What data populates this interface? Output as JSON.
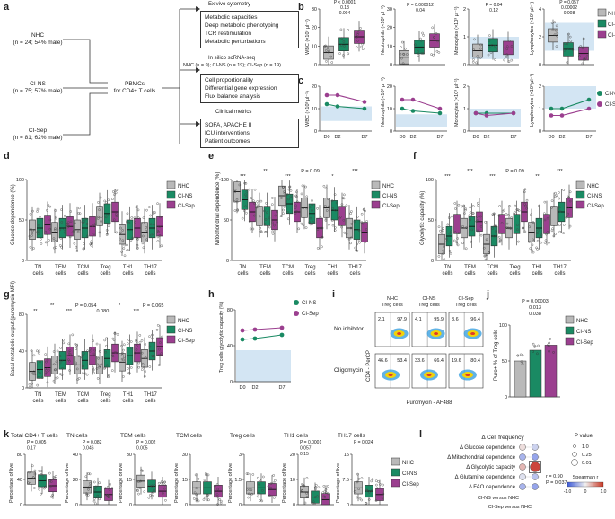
{
  "colors": {
    "NHC": "#b9b9b9",
    "CI-NS": "#1a8a63",
    "CI-Sep": "#9b3f8f",
    "band": "#d3e5f3"
  },
  "panel_labels": {
    "a": "a",
    "b": "b",
    "c": "c",
    "d": "d",
    "e": "e",
    "f": "f",
    "g": "g",
    "h": "h",
    "i": "i",
    "j": "j",
    "k": "k",
    "l": "l"
  },
  "legend_three": [
    "NHC",
    "CI-NS",
    "CI-Sep"
  ],
  "legend_two": [
    "CI-NS",
    "CI-Sep"
  ],
  "flow": {
    "groups": [
      {
        "name": "NHC",
        "detail": "(n = 24; 54% male)"
      },
      {
        "name": "CI-NS",
        "detail": "(n = 75; 57% male)"
      },
      {
        "name": "CI-Sep",
        "detail": "(n = 81; 62% male)"
      }
    ],
    "center": [
      "PBMCs",
      "for CD4+ T cells"
    ],
    "sections": [
      {
        "title": "Ex vivo cytometry",
        "items": [
          "Metabolic capacities",
          "Deep metabolic phenotyping",
          "TCR restimulation",
          "Metabolic perturbations"
        ]
      },
      {
        "title": "In silico scRNA-seq",
        "subtitle": "NHC (n = 9); CI-NS (n = 19); CI-Sep (n = 19)",
        "items": [
          "Cell proportionality",
          "Differential gene expression",
          "Flux balance analysis"
        ]
      },
      {
        "title": "Clinical metrics",
        "items": [
          "SOFA, APACHE II",
          "ICU interventions",
          "Patient outcomes"
        ]
      }
    ]
  },
  "chart_data": [
    {
      "panel": "b",
      "type": "box",
      "title": "",
      "ylabel": "WBC (×10³ μl⁻¹)",
      "categories": [
        "NHC",
        "CI-NS",
        "CI-Sep"
      ],
      "medians": [
        6.5,
        11,
        15
      ],
      "ylim": [
        0,
        30
      ],
      "pvalues": [
        "P < 0.0001",
        "0.13",
        "0.004"
      ]
    },
    {
      "panel": "b",
      "type": "box",
      "ylabel": "Neutrophils (×10³ μl⁻¹)",
      "categories": [
        "NHC",
        "CI-NS",
        "CI-Sep"
      ],
      "medians": [
        4,
        9.5,
        13
      ],
      "ylim": [
        0,
        30
      ],
      "pvalues": [
        "P = 0.000012",
        "0.04"
      ]
    },
    {
      "panel": "b",
      "type": "box",
      "ylabel": "Monocytes (×10³ μl⁻¹)",
      "categories": [
        "NHC",
        "CI-NS",
        "CI-Sep"
      ],
      "medians": [
        0.5,
        0.7,
        0.6
      ],
      "ylim": [
        0,
        2
      ],
      "pvalues": [
        "P = 0.04",
        "0.12"
      ]
    },
    {
      "panel": "b",
      "type": "box",
      "ylabel": "Lymphocytes (×10³ μl⁻¹)",
      "categories": [
        "NHC",
        "CI-NS",
        "CI-Sep"
      ],
      "medians": [
        2.1,
        1.1,
        0.8
      ],
      "ylim": [
        0,
        4
      ],
      "pvalues": [
        "P = 0.057",
        "0.00002",
        "0.008"
      ]
    },
    {
      "panel": "c",
      "type": "line",
      "ylabel": "WBC (×10³ μl⁻¹)",
      "x": [
        "D0",
        "D2",
        "D7"
      ],
      "series": [
        {
          "name": "CI-NS",
          "values": [
            12,
            11,
            10
          ]
        },
        {
          "name": "CI-Sep",
          "values": [
            16,
            16,
            13
          ]
        }
      ],
      "ylim": [
        0,
        20
      ],
      "ref_band": [
        4.5,
        11
      ]
    },
    {
      "panel": "c",
      "type": "line",
      "ylabel": "Neutrophils (×10³ μl⁻¹)",
      "x": [
        "D0",
        "D2",
        "D7"
      ],
      "series": [
        {
          "name": "CI-NS",
          "values": [
            10,
            9,
            8
          ]
        },
        {
          "name": "CI-Sep",
          "values": [
            14,
            14,
            10
          ]
        }
      ],
      "ylim": [
        0,
        20
      ],
      "ref_band": [
        2,
        7.5
      ]
    },
    {
      "panel": "c",
      "type": "line",
      "ylabel": "Monocytes (×10³ μl⁻¹)",
      "x": [
        "D0",
        "D2",
        "D7"
      ],
      "series": [
        {
          "name": "CI-NS",
          "values": [
            0.8,
            0.8,
            0.8
          ]
        },
        {
          "name": "CI-Sep",
          "values": [
            0.8,
            0.7,
            0.8
          ]
        }
      ],
      "ylim": [
        0,
        2
      ],
      "ref_band": [
        0.2,
        1.0
      ]
    },
    {
      "panel": "c",
      "type": "line",
      "ylabel": "Lymphocytes (×10³ μl⁻¹)",
      "x": [
        "D0",
        "D2",
        "D7"
      ],
      "series": [
        {
          "name": "CI-NS",
          "values": [
            1.0,
            1.0,
            1.4
          ]
        },
        {
          "name": "CI-Sep",
          "values": [
            0.7,
            0.7,
            1.0
          ]
        }
      ],
      "ylim": [
        0,
        2
      ],
      "ref_band": [
        1.0,
        2.0
      ]
    },
    {
      "panel": "d",
      "type": "box",
      "ylabel": "Glucose dependence (%)",
      "categories": [
        "TN cells",
        "TEM cells",
        "TCM cells",
        "Treg cells",
        "TH1 cells",
        "TH17 cells"
      ],
      "series": [
        {
          "name": "NHC",
          "values": [
            38,
            35,
            38,
            55,
            32,
            35
          ]
        },
        {
          "name": "CI-NS",
          "values": [
            40,
            40,
            40,
            58,
            38,
            40
          ]
        },
        {
          "name": "CI-Sep",
          "values": [
            44,
            42,
            42,
            60,
            40,
            42
          ]
        }
      ],
      "ylim": [
        0,
        100
      ]
    },
    {
      "panel": "e",
      "type": "box",
      "ylabel": "Mitochondrial dependence (%)",
      "categories": [
        "TN cells",
        "TEM cells",
        "TCM cells",
        "Treg cells",
        "TH1 cells",
        "TH17 cells"
      ],
      "series": [
        {
          "name": "NHC",
          "values": [
            85,
            55,
            80,
            65,
            65,
            40
          ]
        },
        {
          "name": "CI-NS",
          "values": [
            75,
            55,
            70,
            58,
            62,
            38
          ]
        },
        {
          "name": "CI-Sep",
          "values": [
            60,
            50,
            60,
            40,
            55,
            35
          ]
        }
      ],
      "ylim": [
        0,
        100
      ],
      "pvalues": [
        "***",
        "**",
        "***",
        "P = 0.09",
        "*",
        "***"
      ]
    },
    {
      "panel": "f",
      "type": "box",
      "ylabel": "Glycolytic capacity (%)",
      "categories": [
        "TN cells",
        "TEM cells",
        "TCM cells",
        "Treg cells",
        "TH1 cells",
        "TH17 cells"
      ],
      "series": [
        {
          "name": "NHC",
          "values": [
            20,
            40,
            20,
            40,
            35,
            55
          ]
        },
        {
          "name": "CI-NS",
          "values": [
            30,
            42,
            30,
            45,
            40,
            60
          ]
        },
        {
          "name": "CI-Sep",
          "values": [
            45,
            48,
            45,
            60,
            45,
            65
          ]
        }
      ],
      "ylim": [
        0,
        100
      ],
      "pvalues": [
        "***",
        "***",
        "***",
        "P = 0.09",
        "**",
        "***"
      ]
    },
    {
      "panel": "g",
      "type": "box",
      "ylabel": "Basal metabolic output (puromycin MFI)",
      "categories": [
        "TN cells",
        "TEM cells",
        "TCM cells",
        "Treg cells",
        "TH1 cells",
        "TH17 cells"
      ],
      "series": [
        {
          "name": "NHC",
          "values": [
            18,
            25,
            25,
            25,
            28,
            32
          ]
        },
        {
          "name": "CI-NS",
          "values": [
            20,
            30,
            30,
            32,
            35,
            40
          ]
        },
        {
          "name": "CI-Sep",
          "values": [
            22,
            35,
            35,
            38,
            38,
            45
          ]
        }
      ],
      "ylim": [
        0,
        80
      ],
      "pvalues": [
        "**",
        "**",
        "***",
        "P = 0.054",
        "0.080",
        "*",
        "***",
        "P = 0.065"
      ]
    },
    {
      "panel": "h",
      "type": "line",
      "ylabel": "Treg cells glycolytic capacity (%)",
      "x": [
        "D0",
        "D2",
        "D7"
      ],
      "series": [
        {
          "name": "CI-NS",
          "values": [
            47,
            48,
            52
          ]
        },
        {
          "name": "CI-Sep",
          "values": [
            57,
            58,
            60
          ]
        }
      ],
      "ylim": [
        0,
        80
      ],
      "ref_band": [
        0,
        35
      ]
    },
    {
      "panel": "i",
      "type": "flow-plots",
      "row_labels": [
        "No inhibitor",
        "Oligomycin"
      ],
      "col_labels": [
        "NHC Treg cells",
        "CI-NS Treg cells",
        "CI-Sep Treg cells"
      ],
      "xlabel": "Puromycin - AF488",
      "ylabel": "CD4 - PerCP",
      "values": [
        [
          "2.1",
          "97.9",
          "4.1",
          "95.9",
          "3.6",
          "96.4"
        ],
        [
          "46.6",
          "53.4",
          "33.6",
          "66.4",
          "19.6",
          "80.4"
        ]
      ]
    },
    {
      "panel": "j",
      "type": "bar",
      "ylabel": "Puro+ % of Treg cells",
      "categories": [
        "NHC",
        "CI-NS",
        "CI-Sep"
      ],
      "values": [
        50,
        65,
        72
      ],
      "ylim": [
        0,
        100
      ],
      "pvalues": [
        "P = 0.00003",
        "0.013",
        "0.038"
      ]
    },
    {
      "panel": "k",
      "type": "box",
      "ylabel": "Percentage of live",
      "panels": [
        {
          "title": "Total CD4+ T cells",
          "medians": [
            42,
            38,
            30
          ],
          "ylim": [
            0,
            80
          ],
          "pvalues": [
            "P = 0.005",
            "0.17"
          ]
        },
        {
          "title": "TN cells",
          "medians": [
            14,
            10,
            8
          ],
          "ylim": [
            0,
            40
          ],
          "pvalues": [
            "P = 0.082",
            "0.046"
          ]
        },
        {
          "title": "TEM cells",
          "medians": [
            14,
            11,
            8
          ],
          "ylim": [
            0,
            30
          ],
          "pvalues": [
            "P = 0.002",
            "0.005"
          ]
        },
        {
          "title": "TCM cells",
          "medians": [
            10,
            10,
            8
          ],
          "ylim": [
            0,
            30
          ],
          "pvalues": []
        },
        {
          "title": "Treg cells",
          "medians": [
            1.0,
            1.0,
            0.9
          ],
          "ylim": [
            0,
            3
          ],
          "pvalues": []
        },
        {
          "title": "TH1 cells",
          "medians": [
            5,
            3,
            2
          ],
          "ylim": [
            0,
            20
          ],
          "pvalues": [
            "P = 0.0001",
            "0.057",
            "0.15"
          ]
        },
        {
          "title": "TH17 cells",
          "medians": [
            5,
            4,
            3
          ],
          "ylim": [
            0,
            15
          ],
          "pvalues": [
            "P = 0.024"
          ]
        }
      ]
    },
    {
      "panel": "l",
      "type": "dotplot",
      "title": "Δ Cell frequency",
      "rows": [
        "Δ Glucose dependence",
        "Δ Mitochondrial dependence",
        "Δ Glycolytic capacity",
        "Δ Glutamine dependence",
        "Δ FAO dependence"
      ],
      "cols": [
        "CI-NS versus NHC",
        "CI-Sep versus NHC"
      ],
      "r_values": [
        [
          0.1,
          -0.2
        ],
        [
          -0.4,
          -0.5
        ],
        [
          0.3,
          0.9
        ],
        [
          -0.1,
          -0.3
        ],
        [
          -0.4,
          -0.5
        ]
      ],
      "annotation": [
        "r = 0.90",
        "P = 0.037"
      ],
      "legend_title": "P value",
      "legend_p": [
        "1.0",
        "0.25",
        "0.01"
      ],
      "colorbar_title": "Spearman r",
      "colorbar_ticks": [
        "-1.0",
        "0",
        "1.0"
      ]
    }
  ],
  "text": {
    "b_ylabels": [
      "WBC (×10³ μl⁻¹)",
      "Neutrophils (×10³ μl⁻¹)",
      "Monocytes (×10³ μl⁻¹)",
      "Lymphocytes (×10³ μl⁻¹)"
    ],
    "days": [
      "D0",
      "D2",
      "D7"
    ],
    "cells6": [
      "TN cells",
      "TEM cells",
      "TCM cells",
      "Treg cells",
      "TH1 cells",
      "TH17 cells"
    ],
    "d_ylabel": "Glucose dependence (%)",
    "e_ylabel": "Mitochondrial dependence (%)",
    "f_ylabel": "Glycolytic capacity (%)",
    "g_ylabel": "Basal metabolic output (puromycin MFI)",
    "h_ylabel": "Treg cells glycolytic capacity (%)",
    "i_rows": [
      "No inhibitor",
      "Oligomycin"
    ],
    "i_cols": [
      "NHC Treg cells",
      "CI-NS Treg cells",
      "CI-Sep Treg cells"
    ],
    "i_x": "Puromycin - AF488",
    "i_y": "CD4 - PerCP",
    "j_ylabel": "Puro+ % of Treg cells",
    "k_titles": [
      "Total CD4+ T cells",
      "TN cells",
      "TEM cells",
      "TCM cells",
      "Treg cells",
      "TH1 cells",
      "TH17 cells"
    ],
    "k_ylabel": "Percentage of live",
    "l_title": "Δ Cell frequency"
  }
}
